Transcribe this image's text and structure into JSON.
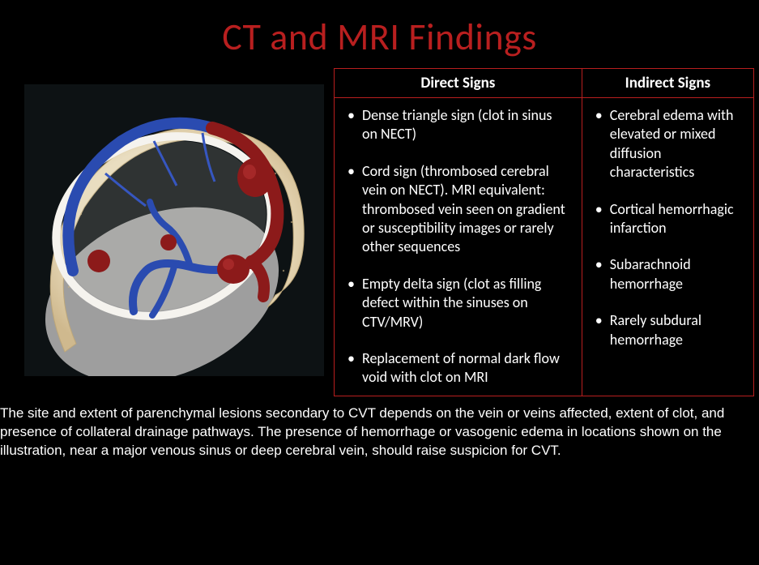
{
  "colors": {
    "background": "#000000",
    "title": "#b81f1f",
    "table_border": "#b81f1f",
    "text": "#ffffff",
    "skull_bone": "#e5d5b5",
    "skull_bone_dark": "#d4b896",
    "brain_surface": "#a0a0a0",
    "vein_blue": "#2a4bb0",
    "vein_blue_light": "#4a6bd0",
    "clot_red": "#8c1a1a",
    "clot_red_light": "#a82222",
    "illus_bg": "#0d1214"
  },
  "title": "CT and MRI Findings",
  "table": {
    "columns": [
      "Direct Signs",
      "Indirect Signs"
    ],
    "direct_signs": [
      "Dense triangle sign (clot in sinus on NECT)",
      "Cord sign (thrombosed cerebral vein on  NECT). MRI equivalent: thrombosed vein seen on gradient or susceptibility images or rarely other sequences",
      "Empty delta sign (clot as filling defect within the sinuses on CTV/MRV)",
      "Replacement of normal dark flow void with clot on MRI"
    ],
    "indirect_signs": [
      "Cerebral edema with elevated or mixed diffusion characteristics",
      "Cortical hemorrhagic infarction",
      "Subarachnoid hemorrhage",
      "Rarely subdural hemorrhage"
    ]
  },
  "caption": "The site and extent of parenchymal lesions secondary to CVT depends on the vein or veins affected, extent of clot, and presence of collateral drainage pathways. The presence of hemorrhage or vasogenic edema in locations shown on the illustration, near a major venous sinus or deep cerebral vein, should raise suspicion for CVT."
}
